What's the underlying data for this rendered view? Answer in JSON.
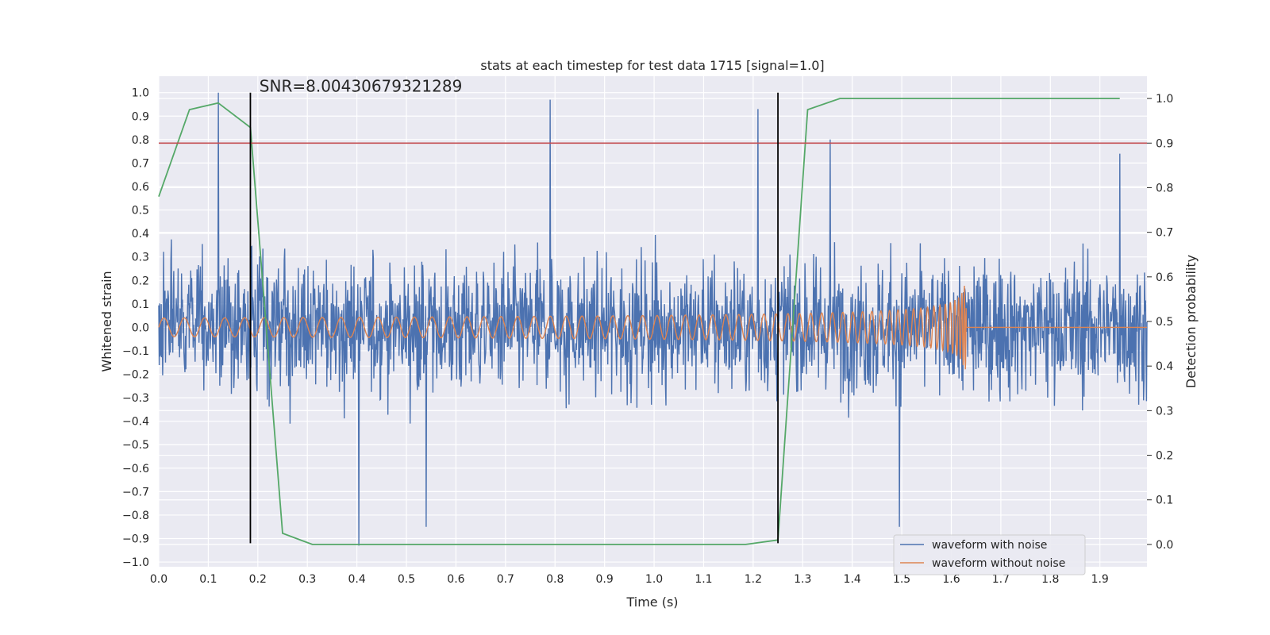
{
  "chart_data": {
    "type": "line",
    "title": "stats at each timestep for test data 1715 [signal=1.0]",
    "xlabel": "Time (s)",
    "ylabel_left": "Whitened strain",
    "ylabel_right": "Detection probability",
    "xlim": [
      0.0,
      1.995
    ],
    "ylim_left": [
      -1.02,
      1.07
    ],
    "ylim_right": [
      -0.05,
      1.05
    ],
    "grid": true,
    "legend_position": "lower-right",
    "xticks": [
      0.0,
      0.1,
      0.2,
      0.3,
      0.4,
      0.5,
      0.6,
      0.7,
      0.8,
      0.9,
      1.0,
      1.1,
      1.2,
      1.3,
      1.4,
      1.5,
      1.6,
      1.7,
      1.8,
      1.9
    ],
    "xtick_labels": [
      "0.0",
      "0.1",
      "0.2",
      "0.3",
      "0.4",
      "0.5",
      "0.6",
      "0.7",
      "0.8",
      "0.9",
      "1.0",
      "1.1",
      "1.2",
      "1.3",
      "1.4",
      "1.5",
      "1.6",
      "1.7",
      "1.8",
      "1.9"
    ],
    "yticks_left": [
      -1.0,
      -0.9,
      -0.8,
      -0.7,
      -0.6,
      -0.5,
      -0.4,
      -0.3,
      -0.2,
      -0.1,
      0.0,
      0.1,
      0.2,
      0.3,
      0.4,
      0.5,
      0.6,
      0.7,
      0.8,
      0.9,
      1.0
    ],
    "ytick_labels_left": [
      "−1.0",
      "−0.9",
      "−0.8",
      "−0.7",
      "−0.6",
      "−0.5",
      "−0.4",
      "−0.3",
      "−0.2",
      "−0.1",
      "0.0",
      "0.1",
      "0.2",
      "0.3",
      "0.4",
      "0.5",
      "0.6",
      "0.7",
      "0.8",
      "0.9",
      "1.0"
    ],
    "yticks_right": [
      0.0,
      0.1,
      0.2,
      0.3,
      0.4,
      0.5,
      0.6,
      0.7,
      0.8,
      0.9,
      1.0
    ],
    "ytick_labels_right": [
      "0.0",
      "0.1",
      "0.2",
      "0.3",
      "0.4",
      "0.5",
      "0.6",
      "0.7",
      "0.8",
      "0.9",
      "1.0"
    ],
    "series": [
      {
        "name": "waveform with noise",
        "axis": "left",
        "color": "#4c72b0",
        "in_legend": true,
        "description": "dense noisy strain, amplitude mostly within about ±0.5 with spikes up to 1.0 and down to -0.93",
        "peak_points": [
          [
            0.12,
            1.0
          ],
          [
            0.79,
            0.97
          ],
          [
            1.21,
            0.93
          ],
          [
            1.355,
            0.8
          ],
          [
            1.94,
            0.74
          ],
          [
            0.404,
            -0.93
          ],
          [
            1.495,
            -0.85
          ],
          [
            0.54,
            -0.85
          ]
        ]
      },
      {
        "name": "waveform without noise",
        "axis": "left",
        "color": "#dd8452",
        "in_legend": true,
        "description": "chirp: amplitude ~0.04 growing to ~0.25, frequency rising, merger at ~1.63 s then flat at 0",
        "merger_time": 1.63,
        "amplitude_start": 0.04,
        "amplitude_peak": 0.25
      },
      {
        "name": "detection probability",
        "axis": "right",
        "color": "#55a868",
        "in_legend": false,
        "x": [
          0.0,
          0.062,
          0.12,
          0.185,
          0.25,
          0.31,
          0.5,
          1.185,
          1.25,
          1.31,
          1.375,
          1.94
        ],
        "y": [
          0.78,
          0.975,
          0.99,
          0.935,
          0.025,
          0.0,
          0.0,
          0.0,
          0.01,
          0.975,
          1.0,
          1.0
        ]
      }
    ],
    "threshold_line": {
      "axis": "right",
      "value": 0.9,
      "color": "#c44e52"
    },
    "vertical_markers": {
      "x": [
        0.185,
        1.25
      ],
      "y_from": -0.92,
      "y_to": 1.0,
      "color": "#000000"
    },
    "annotation": {
      "text": "SNR=8.00430679321289",
      "x": 0.2,
      "y": 1.0
    }
  }
}
